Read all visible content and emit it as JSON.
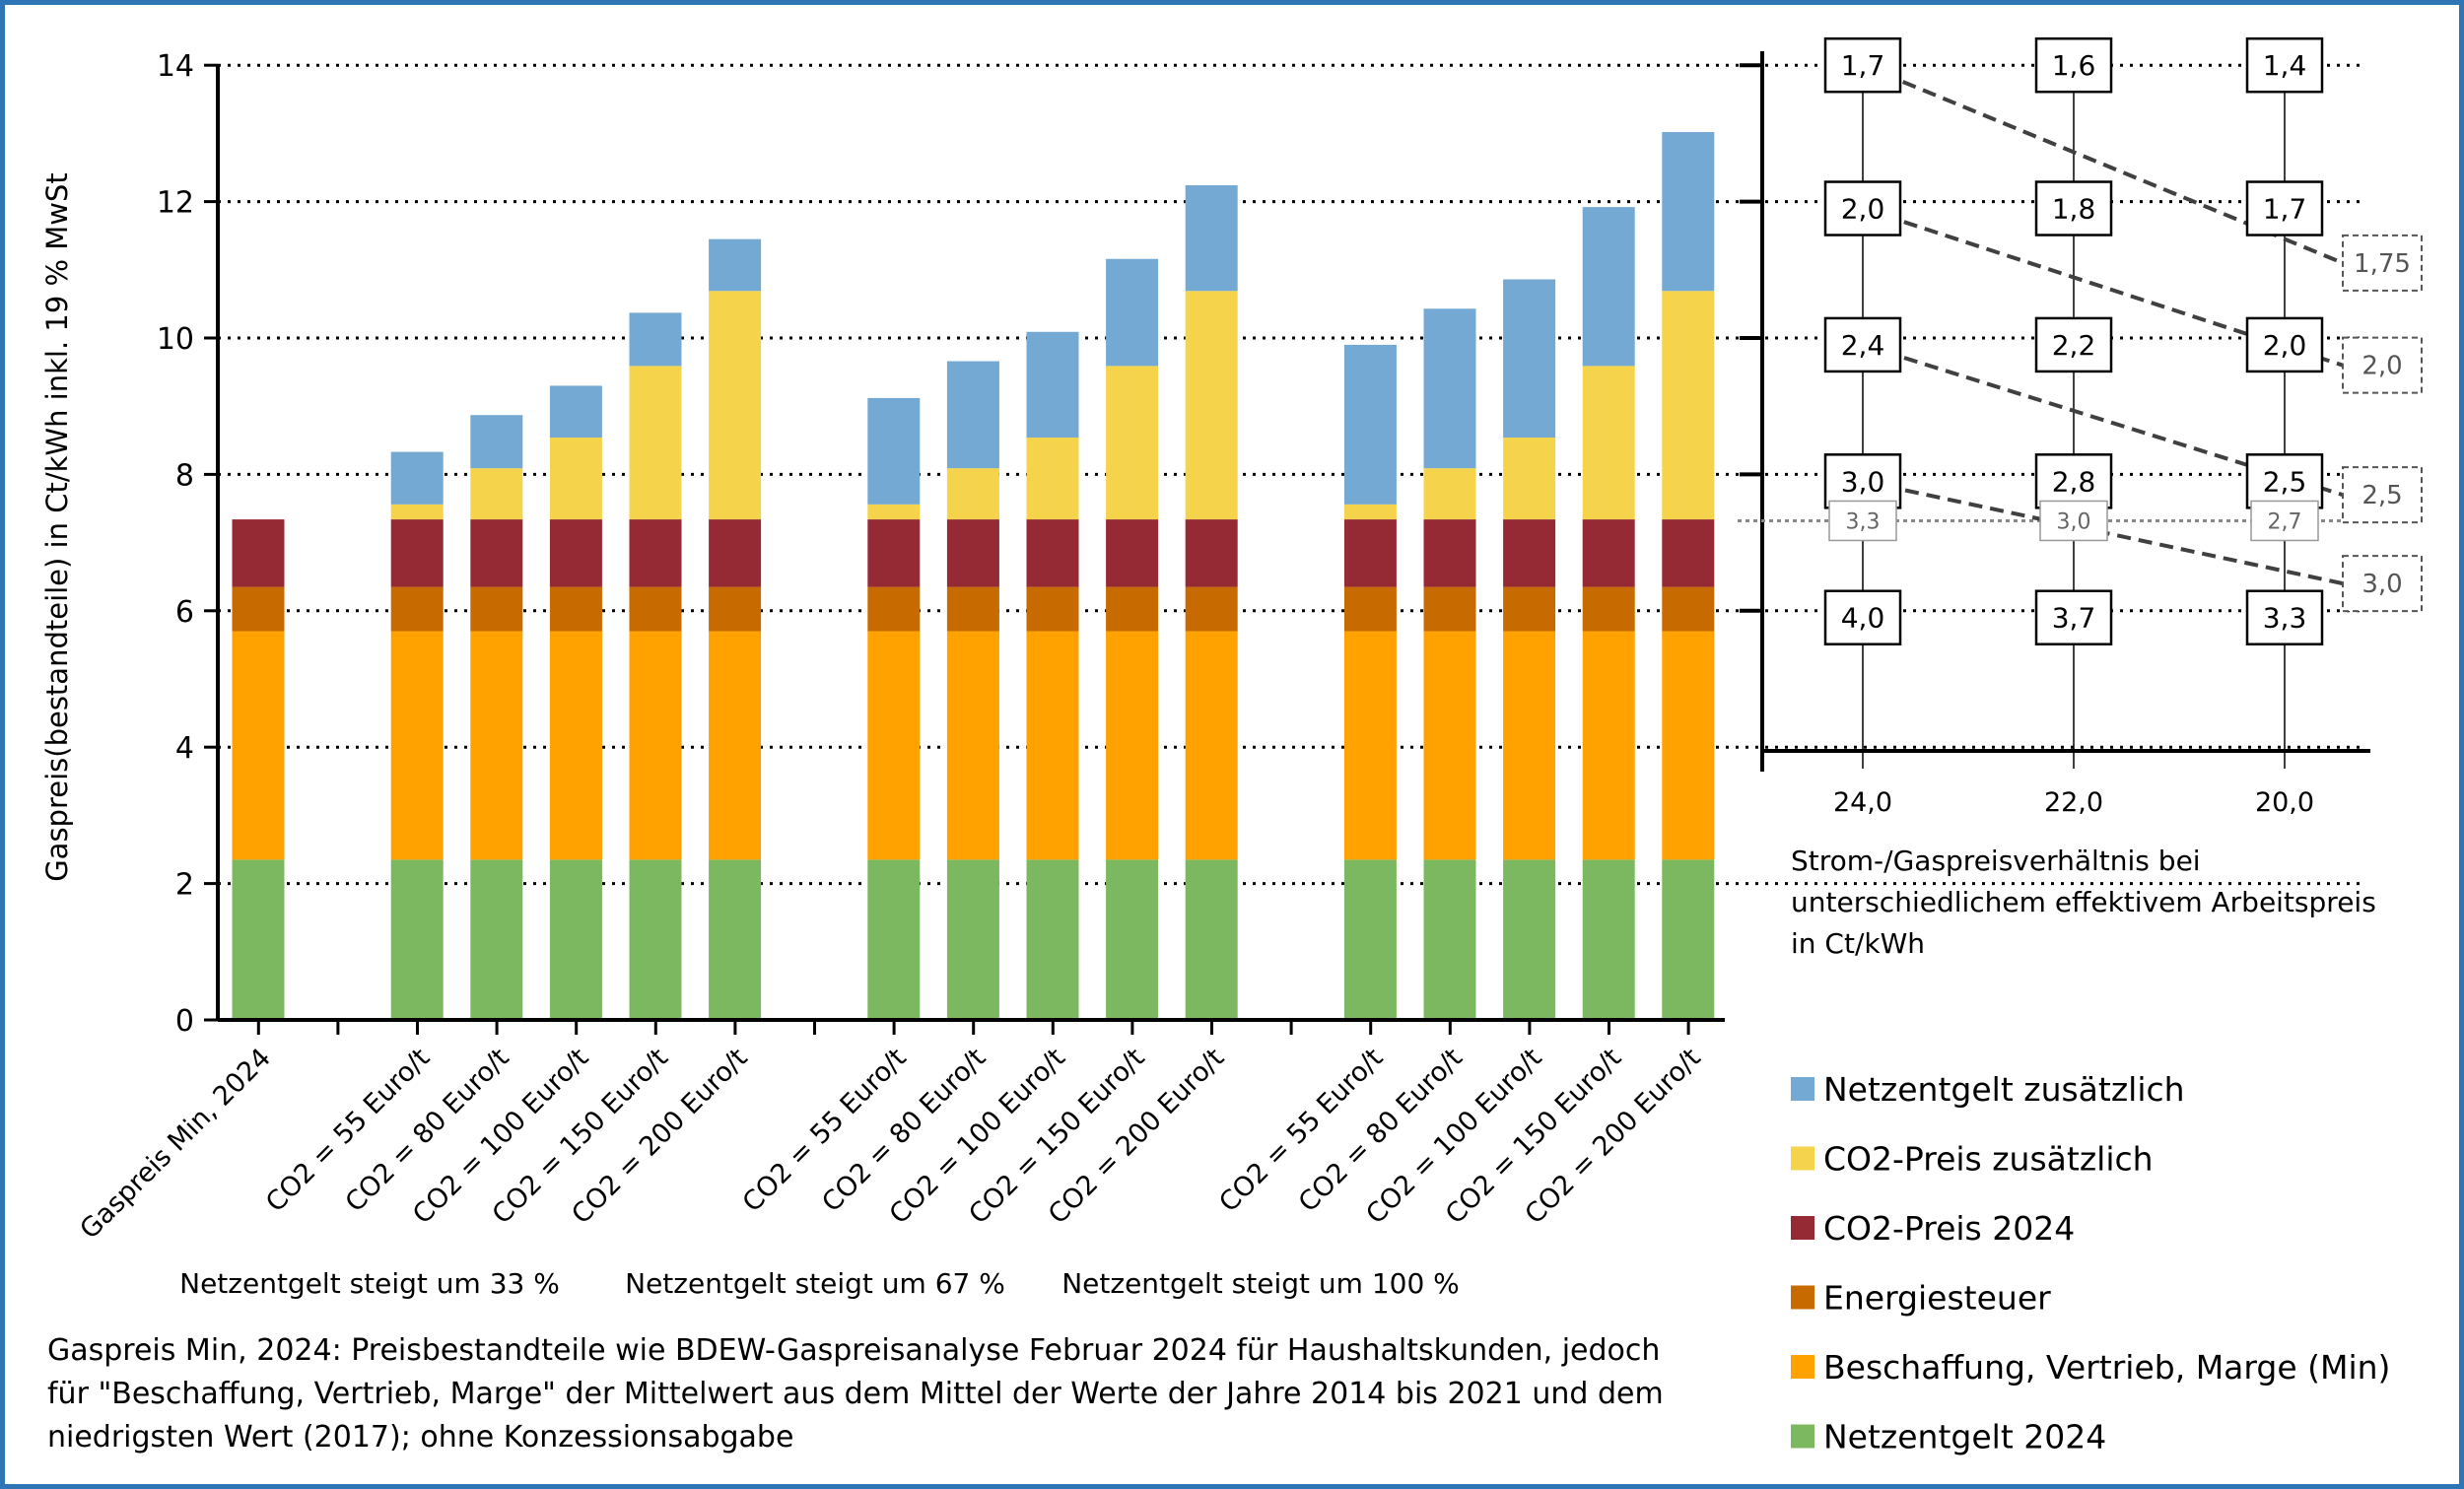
{
  "chart_data": [
    {
      "type": "bar",
      "stacked": true,
      "ylabel": "Gaspreis(bestandteile) in Ct/kWh inkl. 19 % MwSt",
      "ylim": [
        0,
        14
      ],
      "yticks": [
        0,
        2,
        4,
        6,
        8,
        10,
        12,
        14
      ],
      "grid": true,
      "legend_position": "bottom-right",
      "categories": [
        "Gaspreis Min, 2024",
        "CO2 = 55 Euro/t",
        "CO2 = 80 Euro/t",
        "CO2 = 100 Euro/t",
        "CO2 = 150 Euro/t",
        "CO2 = 200 Euro/t",
        "CO2 = 55 Euro/t",
        "CO2 = 80 Euro/t",
        "CO2 = 100 Euro/t",
        "CO2 = 150 Euro/t",
        "CO2 = 200 Euro/t",
        "CO2 = 55 Euro/t",
        "CO2 = 80 Euro/t",
        "CO2 = 100 Euro/t",
        "CO2 = 150 Euro/t",
        "CO2 = 200 Euro/t"
      ],
      "groups": [
        "Netzentgelt steigt um 33 %",
        "Netzentgelt steigt um 67 %",
        "Netzentgelt steigt um 100 %"
      ],
      "series": [
        {
          "name": "Netzentgelt  2024",
          "color": "#7cb85f",
          "values": [
            2.35,
            2.35,
            2.35,
            2.35,
            2.35,
            2.35,
            2.35,
            2.35,
            2.35,
            2.35,
            2.35,
            2.35,
            2.35,
            2.35,
            2.35,
            2.35
          ]
        },
        {
          "name": "Beschaffung, Vertrieb, Marge (Min)",
          "color": "#ffa200",
          "values": [
            3.35,
            3.35,
            3.35,
            3.35,
            3.35,
            3.35,
            3.35,
            3.35,
            3.35,
            3.35,
            3.35,
            3.35,
            3.35,
            3.35,
            3.35,
            3.35
          ]
        },
        {
          "name": "Energiesteuer",
          "color": "#c76a00",
          "values": [
            0.65,
            0.65,
            0.65,
            0.65,
            0.65,
            0.65,
            0.65,
            0.65,
            0.65,
            0.65,
            0.65,
            0.65,
            0.65,
            0.65,
            0.65,
            0.65
          ]
        },
        {
          "name": "CO2-Preis 2024",
          "color": "#952a35",
          "values": [
            0.99,
            0.99,
            0.99,
            0.99,
            0.99,
            0.99,
            0.99,
            0.99,
            0.99,
            0.99,
            0.99,
            0.99,
            0.99,
            0.99,
            0.99,
            0.99
          ]
        },
        {
          "name": "CO2-Preis zusätzlich",
          "color": "#f5d44b",
          "values": [
            0,
            0.22,
            0.75,
            1.2,
            2.25,
            3.35,
            0.22,
            0.75,
            1.2,
            2.25,
            3.35,
            0.22,
            0.75,
            1.2,
            2.25,
            3.35
          ]
        },
        {
          "name": "Netzentgelt zusätzlich",
          "color": "#74a9d3",
          "values": [
            0,
            0.77,
            0.78,
            0.76,
            0.78,
            0.76,
            1.56,
            1.57,
            1.55,
            1.57,
            1.55,
            2.34,
            2.34,
            2.32,
            2.33,
            2.33
          ]
        }
      ]
    },
    {
      "type": "line",
      "xlabel": "Strom-/Gaspreisverhältnis bei unterschiedlichem effektivem Arbeitspreis in Ct/kWh",
      "x_ticks": [
        "24,0",
        "22,0",
        "20,0"
      ],
      "ylim": [
        0,
        14
      ],
      "solid_boxes": [
        {
          "y": 14,
          "labels": [
            "1,7",
            "1,6",
            "1,4"
          ]
        },
        {
          "y": 11.9,
          "labels": [
            "2,0",
            "1,8",
            "1,7"
          ]
        },
        {
          "y": 9.9,
          "labels": [
            "2,4",
            "2,2",
            "2,0"
          ]
        },
        {
          "y": 7.9,
          "labels": [
            "3,0",
            "2,8",
            "2,5"
          ]
        },
        {
          "y": 5.9,
          "labels": [
            "4,0",
            "3,7",
            "3,3"
          ]
        }
      ],
      "grey_line": {
        "y": 7.32,
        "labels": [
          "3,3",
          "3,0",
          "2,7"
        ]
      },
      "dashed_boxes": [
        {
          "y": 11.1,
          "label": "1,75"
        },
        {
          "y": 9.6,
          "label": "2,0"
        },
        {
          "y": 7.7,
          "label": "2,5"
        },
        {
          "y": 6.4,
          "label": "3,0"
        }
      ]
    }
  ],
  "notes": {
    "footnote_lines": [
      "Gaspreis Min, 2024: Preisbestandteile wie BDEW-Gaspreisanalyse Februar 2024 für Haushaltskunden, jedoch",
      "für \"Beschaffung, Vertrieb, Marge\" der Mittelwert aus dem Mittel der Werte der Jahre 2014 bis 2021 und dem",
      "niedrigsten Wert (2017); ohne Konzessionsabgabe"
    ]
  },
  "legend": {
    "items": [
      {
        "label": "Netzentgelt zusätzlich",
        "color": "#74a9d3"
      },
      {
        "label": "CO2-Preis zusätzlich",
        "color": "#f5d44b"
      },
      {
        "label": "CO2-Preis 2024",
        "color": "#952a35"
      },
      {
        "label": "Energiesteuer",
        "color": "#c76a00"
      },
      {
        "label": "Beschaffung, Vertrieb, Marge (Min)",
        "color": "#ffa200"
      },
      {
        "label": "Netzentgelt  2024",
        "color": "#7cb85f"
      }
    ]
  }
}
